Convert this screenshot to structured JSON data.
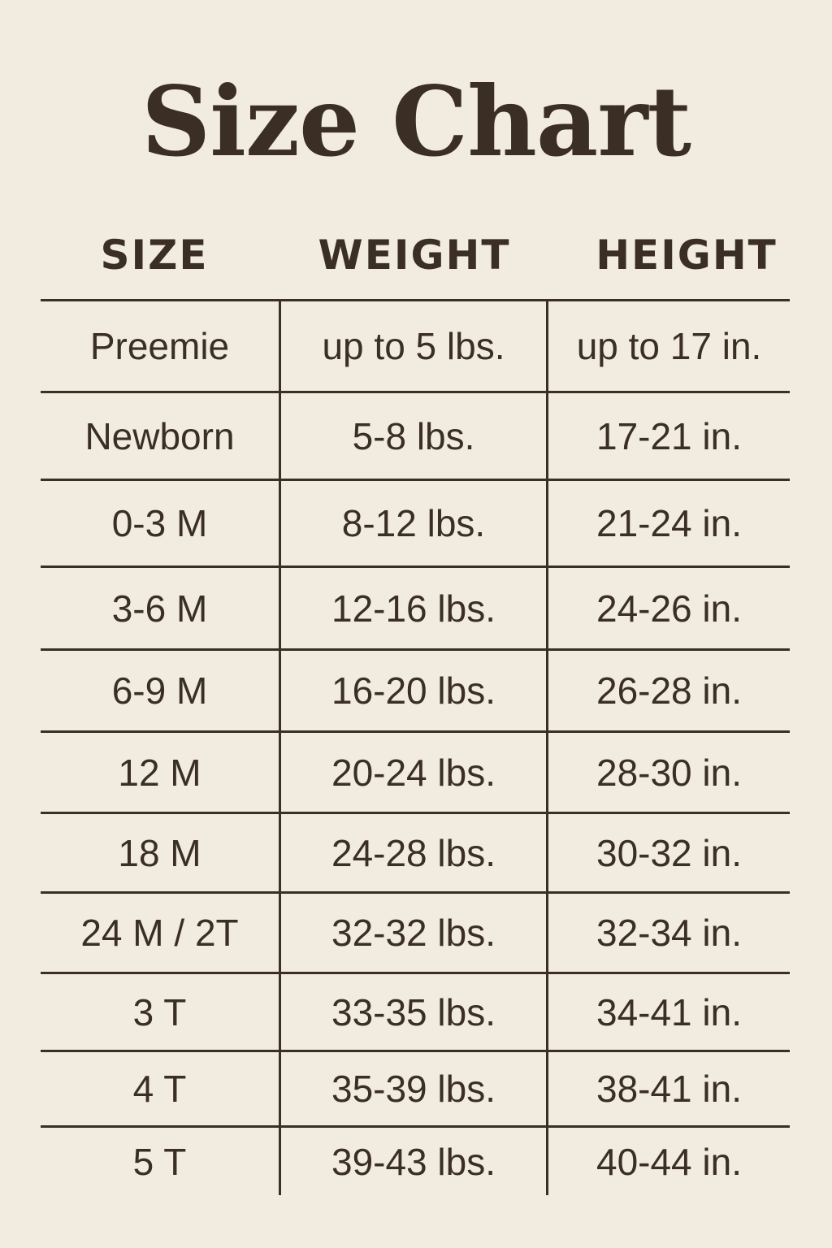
{
  "title": "Size Chart",
  "colors": {
    "background": "#f2ebe0",
    "text": "#3a2e25"
  },
  "headers": [
    "SIZE",
    "WEIGHT",
    "HEIGHT"
  ],
  "rows": [
    {
      "size": "Preemie",
      "weight": "up to 5 lbs.",
      "height": "up to 17 in."
    },
    {
      "size": "Newborn",
      "weight": "5-8 lbs.",
      "height": "17-21 in."
    },
    {
      "size": "0-3 M",
      "weight": "8-12 lbs.",
      "height": "21-24 in."
    },
    {
      "size": "3-6 M",
      "weight": "12-16 lbs.",
      "height": "24-26 in."
    },
    {
      "size": "6-9 M",
      "weight": "16-20 lbs.",
      "height": "26-28 in."
    },
    {
      "size": "12 M",
      "weight": "20-24 lbs.",
      "height": "28-30 in."
    },
    {
      "size": "18 M",
      "weight": "24-28 lbs.",
      "height": "30-32 in."
    },
    {
      "size": "24 M / 2T",
      "weight": "32-32 lbs.",
      "height": "32-34 in."
    },
    {
      "size": "3 T",
      "weight": "33-35 lbs.",
      "height": "34-41 in."
    },
    {
      "size": "4 T",
      "weight": "35-39 lbs.",
      "height": "38-41 in."
    },
    {
      "size": "5 T",
      "weight": "39-43 lbs.",
      "height": "40-44 in."
    }
  ]
}
